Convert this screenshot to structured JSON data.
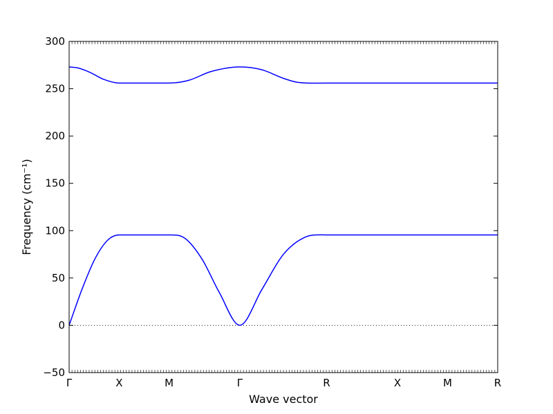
{
  "chart_data": {
    "type": "line",
    "xlabel": "Wave vector",
    "ylabel": "Frequency (cm⁻¹)",
    "ylim": [
      -50,
      300
    ],
    "yticks": [
      -50,
      0,
      50,
      100,
      150,
      200,
      250,
      300
    ],
    "xlim": [
      0,
      1
    ],
    "kpoints": [
      {
        "label": "Γ",
        "x": 0.0
      },
      {
        "label": "X",
        "x": 0.1167
      },
      {
        "label": "M",
        "x": 0.2333
      },
      {
        "label": "Γ",
        "x": 0.3983
      },
      {
        "label": "R",
        "x": 0.6008
      },
      {
        "label": "X",
        "x": 0.7661
      },
      {
        "label": "M",
        "x": 0.8831
      },
      {
        "label": "R",
        "x": 1.0
      }
    ],
    "zero_line": true,
    "series_color": "#0000ff",
    "series": [
      {
        "x": [
          0.0,
          0.03,
          0.06,
          0.09,
          0.1167,
          0.2333,
          0.27,
          0.31,
          0.35,
          0.3983,
          0.45,
          0.5,
          0.55,
          0.6,
          0.6008,
          0.7661,
          0.8831,
          1.0
        ],
        "values": [
          0,
          38,
          70,
          90,
          95.5,
          95.5,
          92,
          70,
          35,
          0,
          38,
          75,
          93,
          95.5,
          95.5,
          95.5,
          95.5,
          95.5
        ]
      },
      {
        "x": [
          0.0,
          0.02,
          0.05,
          0.08,
          0.1167,
          0.2333,
          0.28,
          0.33,
          0.3983,
          0.45,
          0.5,
          0.53,
          0.6008,
          0.7661,
          0.8831,
          1.0
        ],
        "values": [
          273,
          272,
          267,
          260,
          256,
          256,
          259,
          268,
          273,
          270,
          261,
          257,
          256,
          256,
          256,
          256
        ]
      }
    ]
  }
}
